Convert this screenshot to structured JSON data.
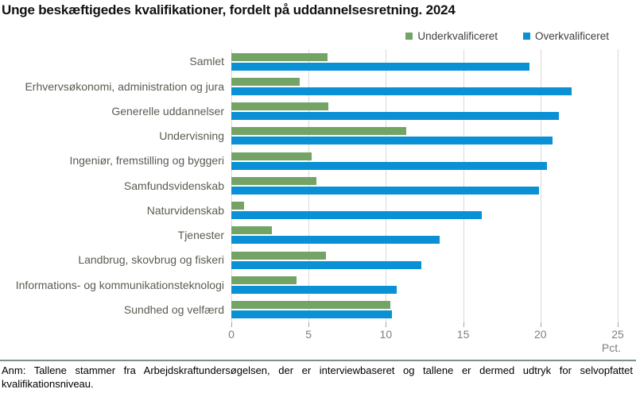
{
  "title": "Unge beskæftigedes kvalifikationer, fordelt på uddannelsesretning. 2024",
  "legend": {
    "items": [
      {
        "label": "Underkvalificeret",
        "color": "#74a465"
      },
      {
        "label": "Overkvalificeret",
        "color": "#0a90d4"
      }
    ]
  },
  "chart_data": {
    "type": "bar",
    "orientation": "horizontal",
    "title": "Unge beskæftigedes kvalifikationer, fordelt på uddannelsesretning. 2024",
    "categories": [
      "Samlet",
      "Erhvervsøkonomi, administration og jura",
      "Generelle uddannelser",
      "Undervisning",
      "Ingeniør, fremstilling og byggeri",
      "Samfundsvidenskab",
      "Naturvidenskab",
      "Tjenester",
      "Landbrug, skovbrug og fiskeri",
      "Informations- og kommunikationsteknologi",
      "Sundhed og velfærd"
    ],
    "series": [
      {
        "name": "Underkvalificeret",
        "color": "#74a465",
        "values": [
          6.2,
          4.4,
          6.3,
          11.3,
          5.2,
          5.5,
          0.8,
          2.6,
          6.1,
          4.2,
          10.3
        ]
      },
      {
        "name": "Overkvalificeret",
        "color": "#0a90d4",
        "values": [
          19.3,
          22.0,
          21.2,
          20.8,
          20.4,
          19.9,
          16.2,
          13.5,
          12.3,
          10.7,
          10.4
        ]
      }
    ],
    "xlabel": "Pct.",
    "unit_label": "Pct.",
    "xlim": [
      0,
      25
    ],
    "xticks": [
      0,
      5,
      10,
      15,
      20,
      25
    ],
    "grid": true,
    "legend_position": "top-right"
  },
  "footnote": "Anm: Tallene stammer fra Arbejdskraftundersøgelsen, der er interviewbaseret og tallene er dermed udtryk for selvopfattet kvalifikationsniveau.",
  "colors": {
    "underkvalificeret": "#74a465",
    "overkvalificeret": "#0a90d4",
    "gridline": "#d9d9d9",
    "divider": "#7f8f8d",
    "category_label": "#5c5a52",
    "tick_label": "#7f7f7f"
  }
}
